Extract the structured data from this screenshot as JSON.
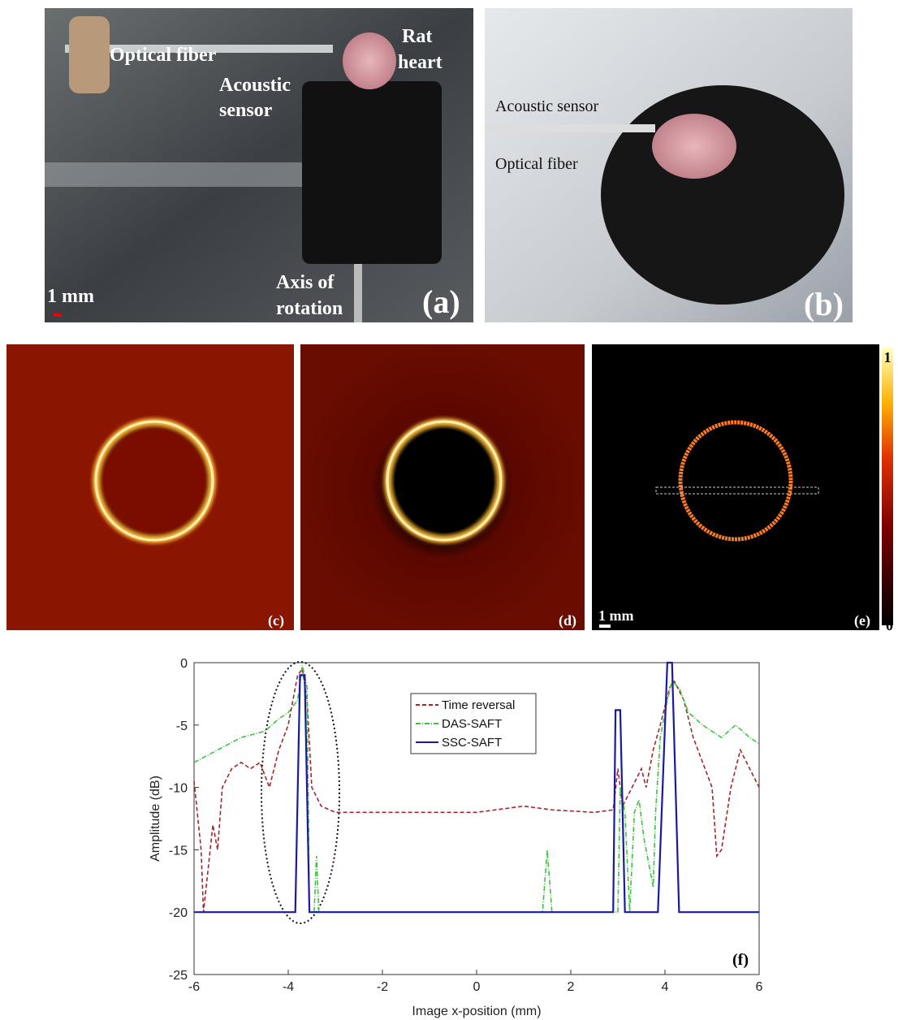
{
  "panels": {
    "a": {
      "optical_fiber": "Optical fiber",
      "rat": "Rat",
      "heart": "heart",
      "acoustic": "Acoustic",
      "sensor": "sensor",
      "scale": "1 mm",
      "axis_of": "Axis of",
      "rotation": "rotation",
      "label": "(a)"
    },
    "b": {
      "acoustic_sensor": "Acoustic sensor",
      "optical_fiber": "Optical fiber",
      "label": "(b)"
    },
    "c": {
      "label": "(c)"
    },
    "d": {
      "label": "(d)"
    },
    "e": {
      "label": "(e)",
      "scale": "1 mm"
    },
    "colorbar": {
      "ticks": [
        0,
        1
      ]
    }
  },
  "chart_data": {
    "type": "line",
    "panel_label": "(f)",
    "x_label": "Image x-position (mm)",
    "y_label": "Amplitude (dB)",
    "xlim": [
      -6,
      6
    ],
    "ylim": [
      -25,
      0
    ],
    "xticks": [
      -6,
      -4,
      -2,
      0,
      2,
      4,
      6
    ],
    "yticks": [
      -25,
      -20,
      -15,
      -10,
      -5,
      0
    ],
    "legend": "upper center",
    "series": [
      {
        "name": "Time reversal",
        "color": "#a0282a",
        "dash": "dashed",
        "x": [
          -6,
          -5.85,
          -5.8,
          -5.6,
          -5.5,
          -5.4,
          -5.2,
          -5,
          -4.8,
          -4.6,
          -4.4,
          -4.2,
          -4,
          -3.8,
          -3.7,
          -3.6,
          -3.5,
          -3.3,
          -3,
          -2,
          0,
          1,
          1.6,
          2.5,
          2.9,
          3,
          3.1,
          3.3,
          3.5,
          3.6,
          3.75,
          3.9,
          4.1,
          4.2,
          4.4,
          4.6,
          4.8,
          5,
          5.1,
          5.2,
          5.4,
          5.6,
          5.8,
          6
        ],
        "values": [
          -9.5,
          -15,
          -20,
          -13,
          -15,
          -10,
          -8.5,
          -8,
          -8.5,
          -8,
          -10,
          -7,
          -5,
          -1,
          -0.5,
          -3,
          -10,
          -11.5,
          -12,
          -12,
          -12,
          -11.5,
          -11.8,
          -12,
          -11.8,
          -8.5,
          -11.5,
          -10,
          -8.5,
          -10,
          -7,
          -5,
          -2,
          -1.5,
          -3,
          -6,
          -8,
          -10,
          -15.5,
          -15,
          -10,
          -7,
          -8.5,
          -10
        ]
      },
      {
        "name": "DAS-SAFT",
        "color": "#3cc43c",
        "dash": "dashdot",
        "x": [
          -6,
          -5.5,
          -5,
          -4.5,
          -4.2,
          -4,
          -3.8,
          -3.7,
          -3.6,
          -3.55,
          -3.45,
          -3.4,
          -3.35,
          1.4,
          1.5,
          1.6,
          3,
          3.05,
          3.15,
          3.25,
          3.35,
          3.45,
          3.55,
          3.65,
          3.75,
          3.8,
          3.9,
          4.05,
          4.15,
          4.3,
          4.5,
          4.8,
          5,
          5.2,
          5.5,
          5.8,
          6
        ],
        "values": [
          -8,
          -7,
          -6,
          -5.5,
          -4.5,
          -4,
          -3,
          -0.2,
          -2,
          -20,
          -20,
          -15.5,
          -20,
          -20,
          -15,
          -20,
          -20,
          -10,
          -12,
          -20,
          -12,
          -11,
          -14,
          -16,
          -18,
          -12,
          -6,
          -3,
          -1.5,
          -2,
          -4,
          -5,
          -5.5,
          -6,
          -5,
          -6,
          -6.5
        ]
      },
      {
        "name": "SSC-SAFT",
        "color": "#1a1aa0",
        "dash": "solid",
        "x": [
          -6,
          -3.85,
          -3.75,
          -3.65,
          -3.55,
          2.9,
          2.95,
          3.05,
          3.15,
          3.85,
          4.05,
          4.15,
          4.3,
          6
        ],
        "values": [
          -20,
          -20,
          -1,
          -1,
          -20,
          -20,
          -3.8,
          -3.8,
          -20,
          -20,
          0,
          0,
          -20,
          -20
        ]
      }
    ]
  }
}
